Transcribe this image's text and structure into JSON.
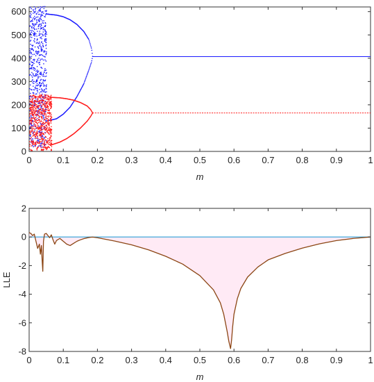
{
  "colors": {
    "series_blue": "#1a1aff",
    "series_red": "#ff1a1a",
    "zero_line": "#2a9fd8",
    "lle_curve": "#8b4513",
    "lle_fill": "#ffd9ec",
    "axis": "#333333"
  },
  "chart_data": [
    {
      "type": "scatter",
      "title": "",
      "xlabel": "m",
      "ylabel": "",
      "xlim": [
        0,
        1
      ],
      "ylim": [
        0,
        620
      ],
      "xticks": [
        0,
        0.1,
        0.2,
        0.3,
        0.4,
        0.5,
        0.6,
        0.7,
        0.8,
        0.9,
        1
      ],
      "xtick_labels": [
        "0",
        "0.1",
        "0.2",
        "0.3",
        "0.4",
        "0.5",
        "0.6",
        "0.7",
        "0.8",
        "0.9",
        "1"
      ],
      "yticks": [
        0,
        100,
        200,
        300,
        400,
        500,
        600
      ],
      "ytick_labels": [
        "0",
        "100",
        "200",
        "300",
        "400",
        "500",
        "600"
      ],
      "grid": false,
      "series": [
        {
          "color_key": "series_blue",
          "bifurcation": {
            "chaotic_region": [
              0,
              0.05
            ],
            "chaotic_range": [
              20,
              625
            ],
            "period2_upper": [
              [
                0.05,
                590
              ],
              [
                0.08,
                585
              ],
              [
                0.1,
                578
              ],
              [
                0.12,
                565
              ],
              [
                0.14,
                545
              ],
              [
                0.16,
                515
              ],
              [
                0.175,
                480
              ],
              [
                0.183,
                440
              ],
              [
                0.186,
                408
              ]
            ],
            "period2_lower": [
              [
                0.05,
                130
              ],
              [
                0.08,
                140
              ],
              [
                0.1,
                160
              ],
              [
                0.12,
                190
              ],
              [
                0.14,
                235
              ],
              [
                0.16,
                290
              ],
              [
                0.175,
                350
              ],
              [
                0.183,
                385
              ],
              [
                0.186,
                408
              ]
            ],
            "fixed_point": {
              "x": [
                0.186,
                1
              ],
              "y": 407
            }
          }
        },
        {
          "color_key": "series_red",
          "bifurcation": {
            "chaotic_region": [
              0,
              0.065
            ],
            "chaotic_range": [
              5,
              245
            ],
            "period2_upper": [
              [
                0.065,
                232
              ],
              [
                0.09,
                230
              ],
              [
                0.11,
                226
              ],
              [
                0.13,
                220
              ],
              [
                0.15,
                210
              ],
              [
                0.17,
                195
              ],
              [
                0.18,
                180
              ],
              [
                0.186,
                165
              ]
            ],
            "period2_lower": [
              [
                0.065,
                28
              ],
              [
                0.09,
                40
              ],
              [
                0.11,
                55
              ],
              [
                0.13,
                75
              ],
              [
                0.15,
                100
              ],
              [
                0.17,
                130
              ],
              [
                0.18,
                150
              ],
              [
                0.186,
                165
              ]
            ],
            "fixed_point": {
              "x": [
                0.186,
                1
              ],
              "y": 165
            }
          }
        }
      ]
    },
    {
      "type": "line",
      "title": "",
      "xlabel": "m",
      "ylabel": "LLE",
      "xlim": [
        0,
        1
      ],
      "ylim": [
        -8,
        2
      ],
      "xticks": [
        0,
        0.1,
        0.2,
        0.3,
        0.4,
        0.5,
        0.6,
        0.7,
        0.8,
        0.9,
        1
      ],
      "xtick_labels": [
        "0",
        "0.1",
        "0.2",
        "0.3",
        "0.4",
        "0.5",
        "0.6",
        "0.7",
        "0.8",
        "0.9",
        "1"
      ],
      "yticks": [
        -8,
        -6,
        -4,
        -2,
        0,
        2
      ],
      "ytick_labels": [
        "-8",
        "-6",
        "-4",
        "-2",
        "0",
        "2"
      ],
      "grid": false,
      "reference_line": {
        "y": 0,
        "color_key": "zero_line"
      },
      "series": [
        {
          "color_key": "lle_curve",
          "x": [
            0,
            0.005,
            0.01,
            0.015,
            0.02,
            0.025,
            0.03,
            0.033,
            0.036,
            0.038,
            0.04,
            0.042,
            0.045,
            0.05,
            0.055,
            0.06,
            0.065,
            0.07,
            0.075,
            0.08,
            0.09,
            0.1,
            0.11,
            0.12,
            0.13,
            0.14,
            0.15,
            0.16,
            0.17,
            0.18,
            0.186,
            0.2,
            0.25,
            0.3,
            0.35,
            0.4,
            0.45,
            0.5,
            0.54,
            0.56,
            0.57,
            0.58,
            0.585,
            0.59,
            0.593,
            0.596,
            0.6,
            0.61,
            0.62,
            0.64,
            0.67,
            0.7,
            0.75,
            0.8,
            0.85,
            0.9,
            0.95,
            1
          ],
          "y": [
            0.3,
            0.25,
            0.1,
            0.2,
            -0.3,
            -0.8,
            -0.5,
            -1.2,
            -0.6,
            -1.6,
            -2.4,
            -0.3,
            0.2,
            0.25,
            0.1,
            -0.05,
            0.15,
            -0.2,
            -0.5,
            -0.25,
            -0.1,
            -0.3,
            -0.5,
            -0.6,
            -0.45,
            -0.3,
            -0.2,
            -0.12,
            -0.06,
            -0.02,
            -0.01,
            -0.05,
            -0.28,
            -0.55,
            -0.9,
            -1.35,
            -1.9,
            -2.7,
            -3.7,
            -4.6,
            -5.4,
            -6.6,
            -7.3,
            -7.8,
            -7.2,
            -6.3,
            -5.4,
            -4.3,
            -3.6,
            -2.8,
            -2.1,
            -1.6,
            -1.15,
            -0.78,
            -0.48,
            -0.25,
            -0.1,
            0
          ]
        }
      ]
    }
  ]
}
